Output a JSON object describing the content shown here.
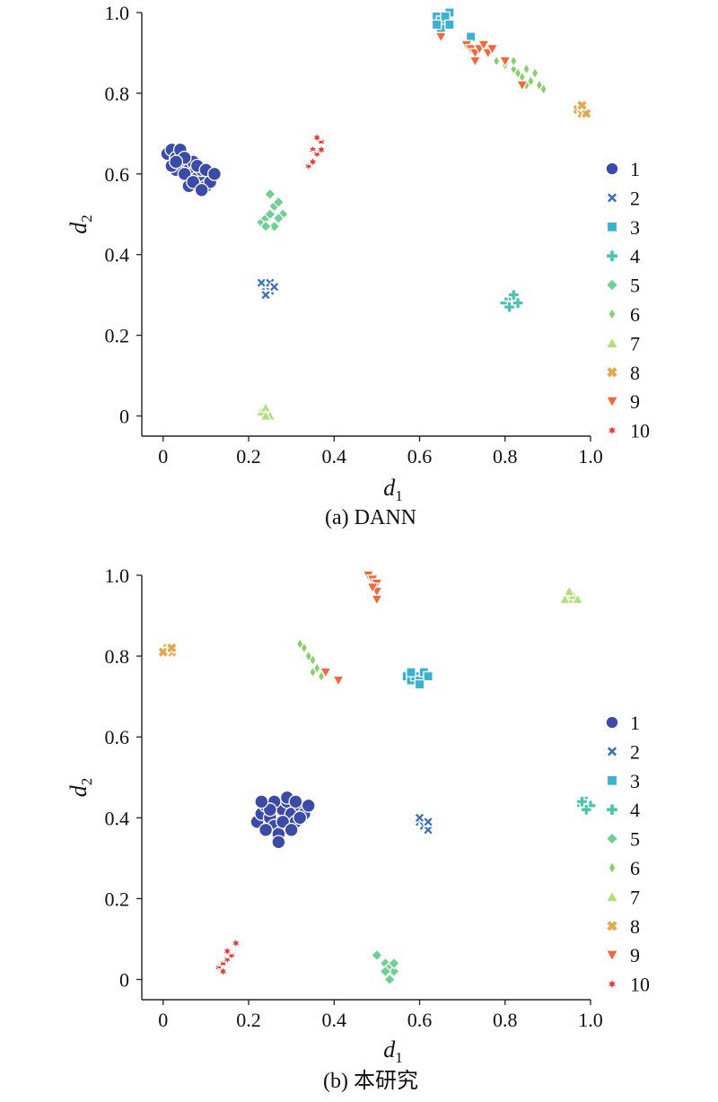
{
  "chart_data": [
    {
      "type": "scatter",
      "title": "",
      "caption": "(a) DANN",
      "xlabel": "d",
      "xlabel_sub": "1",
      "ylabel": "d",
      "ylabel_sub": "2",
      "xlim": [
        -0.05,
        1.0
      ],
      "ylim": [
        -0.05,
        1.0
      ],
      "xticks": [
        "0",
        "0.2",
        "0.4",
        "0.6",
        "0.8",
        "1.0"
      ],
      "yticks": [
        "0",
        "0.2",
        "0.4",
        "0.6",
        "0.8",
        "1.0"
      ],
      "legend_position": "right",
      "series": [
        {
          "name": "1",
          "points": [
            [
              0.01,
              0.65
            ],
            [
              0.02,
              0.66
            ],
            [
              0.03,
              0.64
            ],
            [
              0.04,
              0.63
            ],
            [
              0.05,
              0.62
            ],
            [
              0.06,
              0.61
            ],
            [
              0.07,
              0.6
            ],
            [
              0.08,
              0.59
            ],
            [
              0.09,
              0.58
            ],
            [
              0.1,
              0.57
            ],
            [
              0.11,
              0.58
            ],
            [
              0.03,
              0.61
            ],
            [
              0.05,
              0.6
            ],
            [
              0.07,
              0.63
            ],
            [
              0.09,
              0.61
            ],
            [
              0.02,
              0.62
            ],
            [
              0.04,
              0.66
            ],
            [
              0.06,
              0.57
            ],
            [
              0.08,
              0.62
            ],
            [
              0.1,
              0.61
            ],
            [
              0.12,
              0.6
            ],
            [
              0.05,
              0.64
            ],
            [
              0.03,
              0.63
            ],
            [
              0.07,
              0.58
            ],
            [
              0.09,
              0.56
            ]
          ]
        },
        {
          "name": "2",
          "points": [
            [
              0.24,
              0.32
            ],
            [
              0.25,
              0.31
            ],
            [
              0.23,
              0.33
            ],
            [
              0.25,
              0.33
            ],
            [
              0.24,
              0.3
            ],
            [
              0.26,
              0.32
            ]
          ]
        },
        {
          "name": "3",
          "points": [
            [
              0.64,
              0.99
            ],
            [
              0.65,
              0.98
            ],
            [
              0.66,
              0.97
            ],
            [
              0.67,
              1.0
            ],
            [
              0.65,
              0.96
            ],
            [
              0.66,
              0.99
            ],
            [
              0.67,
              0.97
            ],
            [
              0.64,
              0.97
            ],
            [
              0.72,
              0.94
            ]
          ]
        },
        {
          "name": "4",
          "points": [
            [
              0.8,
              0.28
            ],
            [
              0.81,
              0.29
            ],
            [
              0.82,
              0.29
            ],
            [
              0.83,
              0.28
            ],
            [
              0.81,
              0.27
            ],
            [
              0.82,
              0.3
            ]
          ]
        },
        {
          "name": "5",
          "points": [
            [
              0.23,
              0.48
            ],
            [
              0.24,
              0.49
            ],
            [
              0.25,
              0.5
            ],
            [
              0.26,
              0.52
            ],
            [
              0.27,
              0.53
            ],
            [
              0.25,
              0.55
            ],
            [
              0.26,
              0.47
            ],
            [
              0.28,
              0.5
            ],
            [
              0.24,
              0.47
            ],
            [
              0.27,
              0.49
            ]
          ]
        },
        {
          "name": "6",
          "points": [
            [
              0.78,
              0.88
            ],
            [
              0.8,
              0.87
            ],
            [
              0.82,
              0.86
            ],
            [
              0.83,
              0.85
            ],
            [
              0.84,
              0.84
            ],
            [
              0.85,
              0.86
            ],
            [
              0.86,
              0.83
            ],
            [
              0.87,
              0.85
            ],
            [
              0.88,
              0.82
            ],
            [
              0.89,
              0.81
            ],
            [
              0.82,
              0.88
            ],
            [
              0.85,
              0.82
            ]
          ]
        },
        {
          "name": "7",
          "points": [
            [
              0.23,
              0.01
            ],
            [
              0.24,
              0.02
            ],
            [
              0.25,
              0.0
            ],
            [
              0.24,
              0.0
            ]
          ]
        },
        {
          "name": "8",
          "points": [
            [
              0.97,
              0.76
            ],
            [
              0.98,
              0.75
            ],
            [
              0.99,
              0.75
            ],
            [
              0.98,
              0.77
            ]
          ]
        },
        {
          "name": "9",
          "points": [
            [
              0.71,
              0.92
            ],
            [
              0.72,
              0.91
            ],
            [
              0.73,
              0.9
            ],
            [
              0.74,
              0.91
            ],
            [
              0.75,
              0.92
            ],
            [
              0.76,
              0.9
            ],
            [
              0.77,
              0.91
            ],
            [
              0.65,
              0.94
            ],
            [
              0.73,
              0.88
            ],
            [
              0.8,
              0.88
            ],
            [
              0.84,
              0.82
            ]
          ]
        },
        {
          "name": "10",
          "points": [
            [
              0.35,
              0.66
            ],
            [
              0.36,
              0.65
            ],
            [
              0.37,
              0.68
            ],
            [
              0.34,
              0.62
            ],
            [
              0.36,
              0.69
            ],
            [
              0.35,
              0.63
            ],
            [
              0.37,
              0.66
            ]
          ]
        }
      ]
    },
    {
      "type": "scatter",
      "title": "",
      "caption": "(b) 本研究",
      "xlabel": "d",
      "xlabel_sub": "1",
      "ylabel": "d",
      "ylabel_sub": "2",
      "xlim": [
        -0.05,
        1.0
      ],
      "ylim": [
        -0.05,
        1.0
      ],
      "xticks": [
        "0",
        "0.2",
        "0.4",
        "0.6",
        "0.8",
        "1.0"
      ],
      "yticks": [
        "0",
        "0.2",
        "0.4",
        "0.6",
        "0.8",
        "1.0"
      ],
      "legend_position": "right",
      "series": [
        {
          "name": "1",
          "points": [
            [
              0.22,
              0.39
            ],
            [
              0.23,
              0.41
            ],
            [
              0.24,
              0.43
            ],
            [
              0.25,
              0.4
            ],
            [
              0.26,
              0.38
            ],
            [
              0.27,
              0.36
            ],
            [
              0.28,
              0.42
            ],
            [
              0.29,
              0.44
            ],
            [
              0.3,
              0.41
            ],
            [
              0.31,
              0.39
            ],
            [
              0.32,
              0.43
            ],
            [
              0.33,
              0.41
            ],
            [
              0.26,
              0.44
            ],
            [
              0.24,
              0.37
            ],
            [
              0.28,
              0.39
            ],
            [
              0.3,
              0.37
            ],
            [
              0.32,
              0.4
            ],
            [
              0.27,
              0.34
            ],
            [
              0.25,
              0.42
            ],
            [
              0.34,
              0.43
            ],
            [
              0.29,
              0.45
            ],
            [
              0.23,
              0.44
            ],
            [
              0.31,
              0.44
            ]
          ]
        },
        {
          "name": "2",
          "points": [
            [
              0.6,
              0.39
            ],
            [
              0.61,
              0.38
            ],
            [
              0.62,
              0.37
            ],
            [
              0.6,
              0.4
            ],
            [
              0.62,
              0.39
            ]
          ]
        },
        {
          "name": "3",
          "points": [
            [
              0.57,
              0.75
            ],
            [
              0.58,
              0.74
            ],
            [
              0.59,
              0.75
            ],
            [
              0.6,
              0.74
            ],
            [
              0.61,
              0.76
            ],
            [
              0.62,
              0.75
            ],
            [
              0.6,
              0.73
            ],
            [
              0.58,
              0.76
            ]
          ]
        },
        {
          "name": "4",
          "points": [
            [
              0.98,
              0.43
            ],
            [
              0.99,
              0.44
            ],
            [
              1.0,
              0.43
            ],
            [
              0.99,
              0.42
            ],
            [
              0.98,
              0.44
            ]
          ]
        },
        {
          "name": "5",
          "points": [
            [
              0.5,
              0.06
            ],
            [
              0.52,
              0.04
            ],
            [
              0.53,
              0.03
            ],
            [
              0.54,
              0.02
            ],
            [
              0.53,
              0.0
            ],
            [
              0.52,
              0.02
            ],
            [
              0.54,
              0.04
            ]
          ]
        },
        {
          "name": "6",
          "points": [
            [
              0.32,
              0.83
            ],
            [
              0.33,
              0.82
            ],
            [
              0.34,
              0.8
            ],
            [
              0.35,
              0.79
            ],
            [
              0.36,
              0.77
            ],
            [
              0.37,
              0.75
            ],
            [
              0.35,
              0.76
            ]
          ]
        },
        {
          "name": "7",
          "points": [
            [
              0.95,
              0.94
            ],
            [
              0.96,
              0.95
            ],
            [
              0.97,
              0.94
            ],
            [
              0.95,
              0.96
            ],
            [
              0.94,
              0.94
            ]
          ]
        },
        {
          "name": "8",
          "points": [
            [
              0.01,
              0.82
            ],
            [
              0.02,
              0.81
            ],
            [
              0.0,
              0.81
            ],
            [
              0.02,
              0.82
            ]
          ]
        },
        {
          "name": "9",
          "points": [
            [
              0.48,
              1.0
            ],
            [
              0.49,
              0.99
            ],
            [
              0.5,
              0.98
            ],
            [
              0.5,
              0.96
            ],
            [
              0.49,
              0.97
            ],
            [
              0.5,
              0.94
            ],
            [
              0.38,
              0.76
            ],
            [
              0.41,
              0.74
            ]
          ]
        },
        {
          "name": "10",
          "points": [
            [
              0.13,
              0.03
            ],
            [
              0.14,
              0.04
            ],
            [
              0.15,
              0.05
            ],
            [
              0.16,
              0.06
            ],
            [
              0.17,
              0.09
            ],
            [
              0.14,
              0.02
            ],
            [
              0.15,
              0.07
            ]
          ]
        }
      ]
    }
  ],
  "legend_markers": [
    {
      "label": "1",
      "color": "#3b4ba6",
      "shape": "circle"
    },
    {
      "label": "2",
      "color": "#3c72b8",
      "shape": "x"
    },
    {
      "label": "3",
      "color": "#3cb1d0",
      "shape": "square"
    },
    {
      "label": "4",
      "color": "#4cc3ad",
      "shape": "plus"
    },
    {
      "label": "5",
      "color": "#6fcf94",
      "shape": "diamond"
    },
    {
      "label": "6",
      "color": "#86cf6a",
      "shape": "thin-diamond"
    },
    {
      "label": "7",
      "color": "#b3df7f",
      "shape": "triangle-up"
    },
    {
      "label": "8",
      "color": "#e3a94e",
      "shape": "x-thick"
    },
    {
      "label": "9",
      "color": "#f0683c",
      "shape": "triangle-down"
    },
    {
      "label": "10",
      "color": "#e03a35",
      "shape": "star"
    }
  ]
}
